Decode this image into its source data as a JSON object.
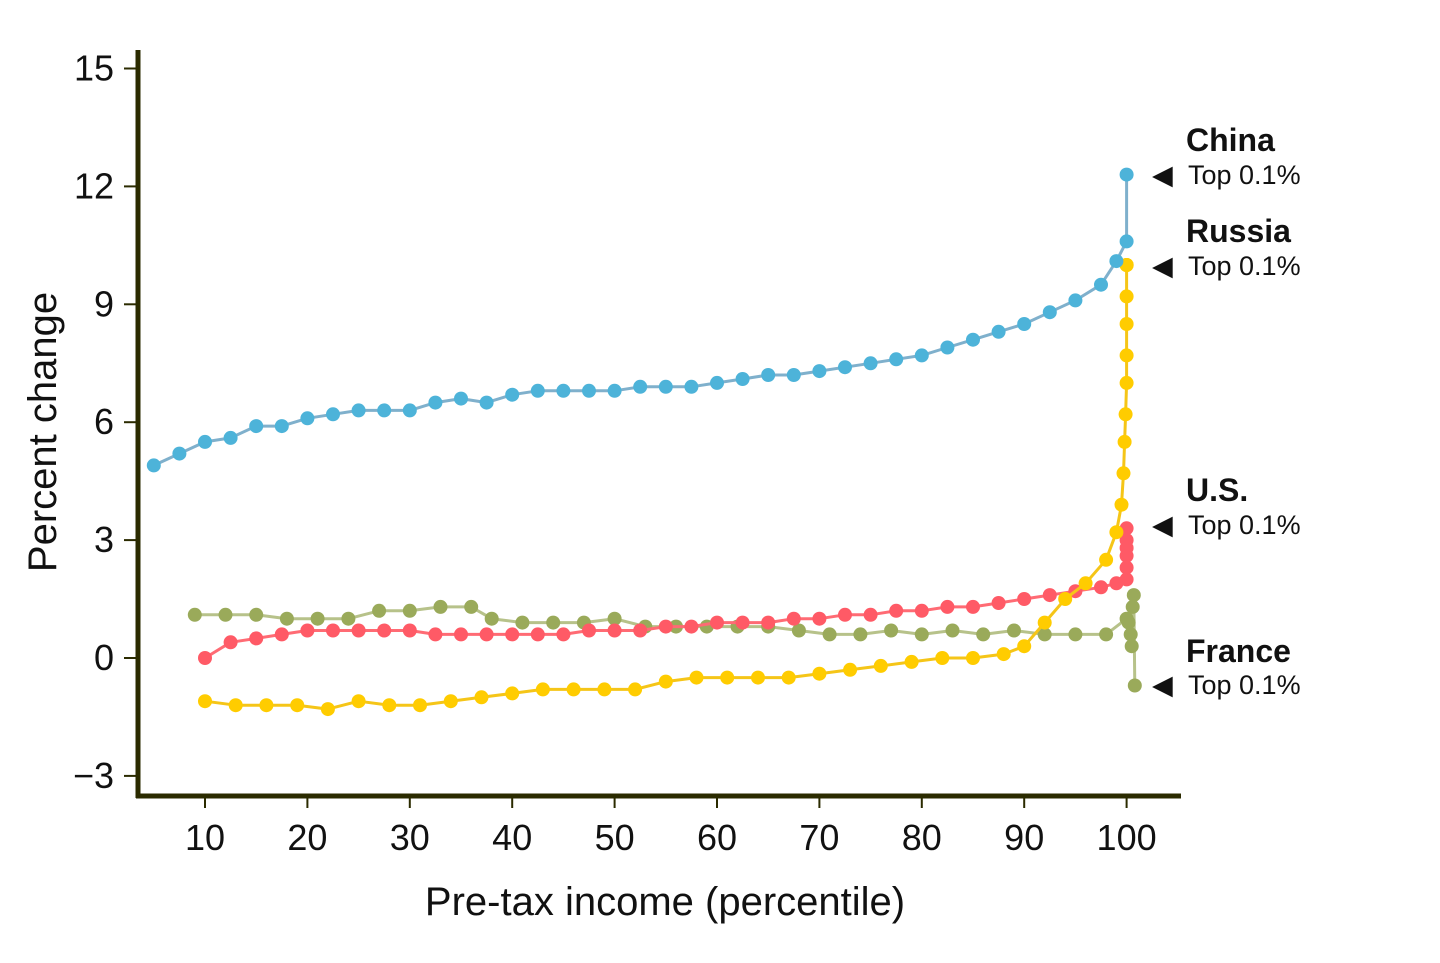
{
  "chart_data": {
    "type": "line",
    "title": "",
    "xlabel": "Pre-tax income (percentile)",
    "ylabel": "Percent change",
    "xlim": [
      5,
      105
    ],
    "ylim": [
      -3.5,
      15.3
    ],
    "xticks": [
      10,
      20,
      30,
      40,
      50,
      60,
      70,
      80,
      90,
      100
    ],
    "yticks": [
      -3,
      0,
      3,
      6,
      9,
      12,
      15
    ],
    "ytick_labels": [
      "−3",
      "0",
      "3",
      "6",
      "9",
      "12",
      "15"
    ],
    "series": [
      {
        "name": "China",
        "color": "#4db3d9",
        "line_color": "#7fb0cc",
        "annotation": "Top 0.1%",
        "x": [
          5,
          7.5,
          10,
          12.5,
          15,
          17.5,
          20,
          22.5,
          25,
          27.5,
          30,
          32.5,
          35,
          37.5,
          40,
          42.5,
          45,
          47.5,
          50,
          52.5,
          55,
          57.5,
          60,
          62.5,
          65,
          67.5,
          70,
          72.5,
          75,
          77.5,
          80,
          82.5,
          85,
          87.5,
          90,
          92.5,
          95,
          97.5,
          99,
          100,
          100
        ],
        "values": [
          4.9,
          5.2,
          5.5,
          5.6,
          5.9,
          5.9,
          6.1,
          6.2,
          6.3,
          6.3,
          6.3,
          6.5,
          6.6,
          6.5,
          6.7,
          6.8,
          6.8,
          6.8,
          6.8,
          6.9,
          6.9,
          6.9,
          7.0,
          7.1,
          7.2,
          7.2,
          7.3,
          7.4,
          7.5,
          7.6,
          7.7,
          7.9,
          8.1,
          8.3,
          8.5,
          8.8,
          9.1,
          9.5,
          10.1,
          10.6,
          12.3
        ]
      },
      {
        "name": "Russia",
        "color": "#ffcc00",
        "line_color": "#f5c518",
        "annotation": "Top 0.1%",
        "x": [
          10,
          13,
          16,
          19,
          22,
          25,
          28,
          31,
          34,
          37,
          40,
          43,
          46,
          49,
          52,
          55,
          58,
          61,
          64,
          67,
          70,
          73,
          76,
          79,
          82,
          85,
          88,
          90,
          92,
          94,
          96,
          98,
          99,
          99.5,
          99.7,
          99.8,
          99.9,
          100,
          100,
          100,
          100,
          100,
          100,
          100
        ],
        "values": [
          -1.1,
          -1.2,
          -1.2,
          -1.2,
          -1.3,
          -1.1,
          -1.2,
          -1.2,
          -1.1,
          -1.0,
          -0.9,
          -0.8,
          -0.8,
          -0.8,
          -0.8,
          -0.6,
          -0.5,
          -0.5,
          -0.5,
          -0.5,
          -0.4,
          -0.3,
          -0.2,
          -0.1,
          0.0,
          0.0,
          0.1,
          0.3,
          0.9,
          1.5,
          1.9,
          2.5,
          3.2,
          3.9,
          4.7,
          5.5,
          6.2,
          7.0,
          7.7,
          8.5,
          9.2,
          10.0,
          10.0,
          10.0
        ]
      },
      {
        "name": "U.S.",
        "color": "#ff5a66",
        "line_color": "#ff6b74",
        "annotation": "Top 0.1%",
        "x": [
          10,
          12.5,
          15,
          17.5,
          20,
          22.5,
          25,
          27.5,
          30,
          32.5,
          35,
          37.5,
          40,
          42.5,
          45,
          47.5,
          50,
          52.5,
          55,
          57.5,
          60,
          62.5,
          65,
          67.5,
          70,
          72.5,
          75,
          77.5,
          80,
          82.5,
          85,
          87.5,
          90,
          92.5,
          95,
          97.5,
          99,
          100,
          100,
          100,
          100,
          100,
          100
        ],
        "values": [
          0.0,
          0.4,
          0.5,
          0.6,
          0.7,
          0.7,
          0.7,
          0.7,
          0.7,
          0.6,
          0.6,
          0.6,
          0.6,
          0.6,
          0.6,
          0.7,
          0.7,
          0.7,
          0.8,
          0.8,
          0.9,
          0.9,
          0.9,
          1.0,
          1.0,
          1.1,
          1.1,
          1.2,
          1.2,
          1.3,
          1.3,
          1.4,
          1.5,
          1.6,
          1.7,
          1.8,
          1.9,
          2.0,
          2.3,
          2.6,
          2.8,
          3.0,
          3.3
        ]
      },
      {
        "name": "France",
        "color": "#9aaa5a",
        "line_color": "#b7c28a",
        "annotation": "Top 0.1%",
        "x": [
          9,
          12,
          15,
          18,
          21,
          24,
          27,
          30,
          33,
          36,
          38,
          41,
          44,
          47,
          50,
          53,
          56,
          59,
          62,
          65,
          68,
          71,
          74,
          77,
          80,
          83,
          86,
          89,
          92,
          95,
          98,
          100,
          100.2,
          100.4,
          100.5,
          100.6,
          100.7,
          100.8
        ],
        "values": [
          1.1,
          1.1,
          1.1,
          1.0,
          1.0,
          1.0,
          1.2,
          1.2,
          1.3,
          1.3,
          1.0,
          0.9,
          0.9,
          0.9,
          1.0,
          0.8,
          0.8,
          0.8,
          0.8,
          0.8,
          0.7,
          0.6,
          0.6,
          0.7,
          0.6,
          0.7,
          0.6,
          0.7,
          0.6,
          0.6,
          0.6,
          1.0,
          0.9,
          0.6,
          0.3,
          1.3,
          1.6,
          -0.7
        ]
      }
    ]
  },
  "labels": {
    "china": "China",
    "russia": "Russia",
    "us": "U.S.",
    "france": "France",
    "top": "Top 0.1%",
    "marker": "◀"
  }
}
